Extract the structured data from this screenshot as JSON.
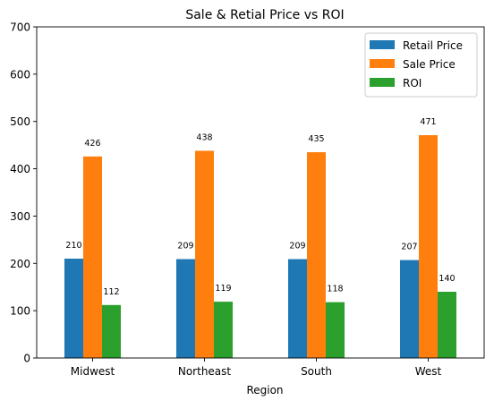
{
  "chart_data": {
    "type": "bar",
    "title": "Sale & Retial Price vs ROI",
    "xlabel": "Region",
    "ylabel": "",
    "ylim": [
      0,
      700
    ],
    "yticks": [
      0,
      100,
      200,
      300,
      400,
      500,
      600,
      700
    ],
    "categories": [
      "Midwest",
      "Northeast",
      "South",
      "West"
    ],
    "series": [
      {
        "name": "Retail Price",
        "color": "#1f77b4",
        "values": [
          210,
          209,
          209,
          207
        ]
      },
      {
        "name": "Sale Price",
        "color": "#ff7f0e",
        "values": [
          426,
          438,
          435,
          471
        ]
      },
      {
        "name": "ROI",
        "color": "#2ca02c",
        "values": [
          112,
          119,
          118,
          140
        ]
      }
    ],
    "grid": false,
    "legend_position": "top-right"
  }
}
